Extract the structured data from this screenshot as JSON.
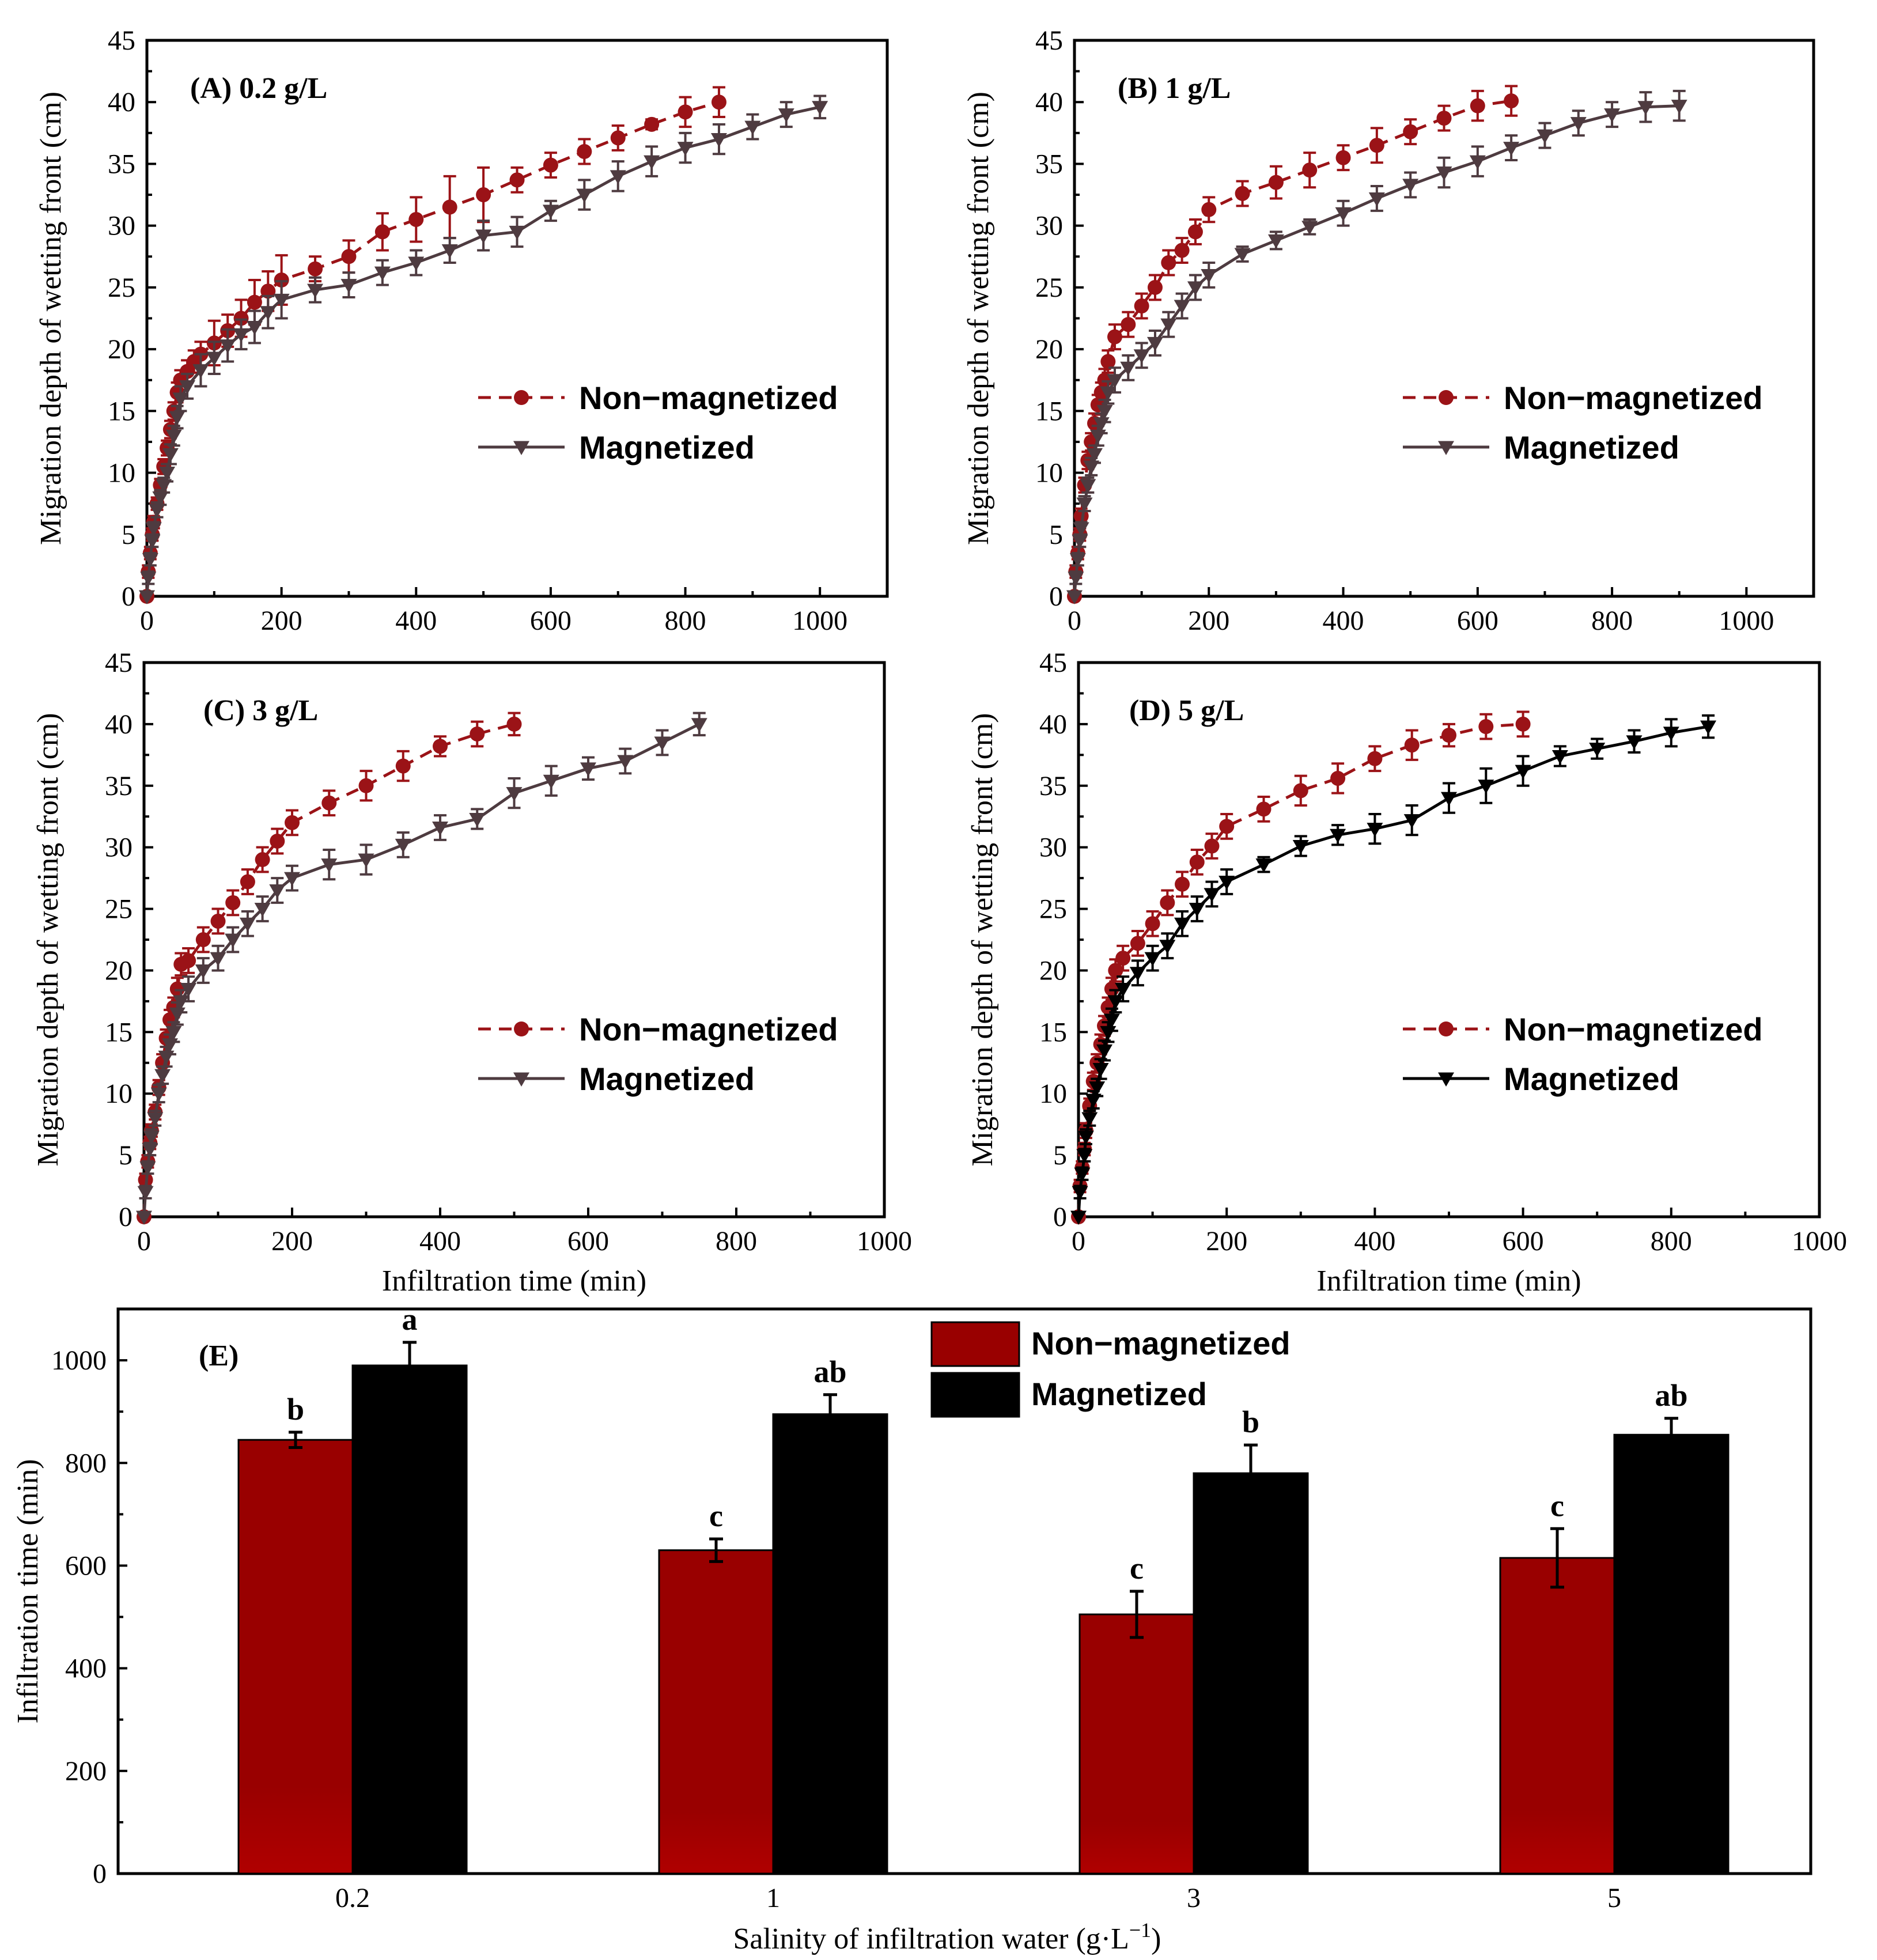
{
  "colors": {
    "non_magnetized": "#9b1317",
    "magnetized_line": "#4e3b40",
    "magnetized_dark": "#000000",
    "bar_non_magnetized": "#990000",
    "bar_magnetized": "#000000"
  },
  "chart_data": [
    {
      "type": "line",
      "panel": "(A) 0.2 g/L",
      "xlabel": "",
      "ylabel": "Migration depth of wetting front (cm)",
      "xlim": [
        0,
        1100
      ],
      "ylim": [
        0,
        45
      ],
      "xticks": [
        "0",
        "200",
        "400",
        "600",
        "800",
        "1000"
      ],
      "yticks": [
        "0",
        "5",
        "10",
        "15",
        "20",
        "25",
        "30",
        "35",
        "40",
        "45"
      ],
      "legend": [
        "Non−magnetized",
        "Magnetized"
      ],
      "series": [
        {
          "name": "Non−magnetized",
          "x": [
            0,
            2,
            5,
            8,
            10,
            15,
            20,
            25,
            30,
            35,
            40,
            45,
            50,
            60,
            70,
            80,
            100,
            120,
            140,
            160,
            180,
            200,
            250,
            300,
            350,
            400,
            450,
            500,
            550,
            600,
            650,
            700,
            750,
            800,
            850
          ],
          "y": [
            0,
            2,
            3.5,
            5,
            6,
            7.5,
            9,
            10.5,
            12,
            13.5,
            15,
            16.5,
            17.5,
            18.2,
            19,
            19.6,
            20.5,
            21.5,
            22.5,
            23.8,
            24.7,
            25.6,
            26.5,
            27.5,
            29.5,
            30.5,
            31.5,
            32.5,
            33.7,
            34.9,
            36,
            37.1,
            38.2,
            39.2,
            40
          ],
          "err": [
            0,
            0.5,
            0.5,
            0.5,
            0.5,
            0.5,
            0.5,
            0.6,
            0.6,
            0.7,
            0.7,
            0.8,
            0.8,
            0.9,
            0.9,
            1,
            1.8,
            1.3,
            1.5,
            1.8,
            1.6,
            2,
            1,
            1.3,
            1.5,
            1.8,
            2.5,
            2.2,
            1,
            1,
            1,
            1,
            0.4,
            1.2,
            1.2
          ]
        },
        {
          "name": "Magnetized",
          "x": [
            0,
            2,
            5,
            8,
            10,
            15,
            20,
            25,
            30,
            35,
            40,
            45,
            50,
            60,
            80,
            100,
            120,
            140,
            160,
            180,
            200,
            250,
            300,
            350,
            400,
            450,
            500,
            550,
            600,
            650,
            700,
            750,
            800,
            850,
            900,
            950,
            1000
          ],
          "y": [
            0,
            1.5,
            3,
            4.5,
            5.5,
            7,
            8,
            9,
            10,
            11.5,
            13,
            14.5,
            16,
            17,
            18.3,
            19.3,
            20.3,
            21.2,
            21.8,
            23,
            24,
            24.8,
            25.2,
            26.2,
            27,
            28,
            29.2,
            29.5,
            31.2,
            32.5,
            34,
            35.2,
            36.3,
            37,
            38,
            39,
            39.6
          ],
          "err": [
            0,
            0.5,
            0.5,
            0.5,
            0.5,
            0.6,
            0.6,
            0.6,
            0.7,
            0.8,
            0.8,
            0.9,
            1,
            1,
            1.3,
            1.3,
            1.3,
            1.2,
            1.3,
            1.3,
            1.5,
            1,
            1,
            1,
            1,
            1,
            1.2,
            1.2,
            0.8,
            1.2,
            1.2,
            1.2,
            1.2,
            1.2,
            1,
            1,
            0.9
          ]
        }
      ]
    },
    {
      "type": "line",
      "panel": "(B) 1 g/L",
      "xlabel": "",
      "ylabel": "Migration depth of wetting front (cm)",
      "xlim": [
        0,
        1100
      ],
      "ylim": [
        0,
        45
      ],
      "xticks": [
        "0",
        "200",
        "400",
        "600",
        "800",
        "1000"
      ],
      "yticks": [
        "0",
        "5",
        "10",
        "15",
        "20",
        "25",
        "30",
        "35",
        "40",
        "45"
      ],
      "legend": [
        "Non−magnetized",
        "Magnetized"
      ],
      "series": [
        {
          "name": "Non−magnetized",
          "x": [
            0,
            2,
            5,
            8,
            10,
            15,
            20,
            25,
            30,
            35,
            40,
            45,
            50,
            60,
            80,
            100,
            120,
            140,
            160,
            180,
            200,
            250,
            300,
            350,
            400,
            450,
            500,
            550,
            600,
            650
          ],
          "y": [
            0,
            2,
            3.5,
            5,
            6.5,
            9,
            11,
            12.5,
            14,
            15.5,
            16.5,
            17.5,
            19,
            21,
            22,
            23.5,
            25,
            27,
            28,
            29.5,
            31.3,
            32.6,
            33.5,
            34.5,
            35.5,
            36.5,
            37.6,
            38.7,
            39.7,
            40.1
          ],
          "err": [
            0,
            0.5,
            0.5,
            0.5,
            0.6,
            0.6,
            0.7,
            0.7,
            0.8,
            0.8,
            0.8,
            0.9,
            0.9,
            1,
            1,
            1,
            1,
            1,
            1,
            1,
            1,
            1,
            1.3,
            1.4,
            1,
            1.4,
            1,
            1,
            1.2,
            1.2
          ]
        },
        {
          "name": "Magnetized",
          "x": [
            0,
            2,
            5,
            8,
            10,
            15,
            20,
            25,
            30,
            35,
            40,
            45,
            50,
            60,
            80,
            100,
            120,
            140,
            160,
            180,
            200,
            250,
            300,
            350,
            400,
            450,
            500,
            550,
            600,
            650,
            700,
            750,
            800,
            850,
            900
          ],
          "y": [
            0,
            1.5,
            3,
            4.5,
            5.5,
            7.5,
            9,
            10.5,
            11.5,
            13,
            14,
            15,
            16.5,
            17.5,
            18.5,
            19.5,
            20.5,
            22,
            23.5,
            25,
            26,
            27.7,
            28.8,
            29.9,
            31,
            32.2,
            33.3,
            34.3,
            35.2,
            36.3,
            37.3,
            38.3,
            39,
            39.6,
            39.7
          ],
          "err": [
            0,
            0.5,
            0.5,
            0.5,
            0.5,
            0.6,
            0.6,
            0.7,
            0.7,
            0.8,
            0.8,
            0.9,
            0.9,
            1,
            1,
            1,
            1,
            1,
            1,
            1,
            1,
            0.6,
            0.7,
            0.6,
            1,
            1,
            1,
            1.2,
            1.2,
            1,
            1,
            1,
            1,
            1.2,
            1.2
          ]
        }
      ]
    },
    {
      "type": "line",
      "panel": "(C) 3 g/L",
      "xlabel": "Infiltration time (min)",
      "ylabel": "Migration depth of wetting front (cm)",
      "xlim": [
        0,
        1000
      ],
      "ylim": [
        0,
        45
      ],
      "xticks": [
        "0",
        "200",
        "400",
        "600",
        "800",
        "1000"
      ],
      "yticks": [
        "0",
        "5",
        "10",
        "15",
        "20",
        "25",
        "30",
        "35",
        "40",
        "45"
      ],
      "legend": [
        "Non−magnetized",
        "Magnetized"
      ],
      "series": [
        {
          "name": "Non−magnetized",
          "x": [
            0,
            2,
            5,
            8,
            10,
            15,
            20,
            25,
            30,
            35,
            40,
            45,
            50,
            60,
            80,
            100,
            120,
            140,
            160,
            180,
            200,
            250,
            300,
            350,
            400,
            450,
            500
          ],
          "y": [
            0,
            3,
            4.5,
            6,
            7,
            8.5,
            10.5,
            12.5,
            14.5,
            16,
            17,
            18.5,
            20.5,
            20.8,
            22.5,
            24,
            25.5,
            27.2,
            29,
            30.5,
            32,
            33.6,
            35,
            36.6,
            38.2,
            39.2,
            40
          ],
          "err": [
            0,
            0.5,
            0.5,
            0.5,
            0.5,
            0.6,
            0.6,
            0.7,
            0.7,
            0.8,
            0.8,
            0.9,
            0.9,
            1,
            1,
            1,
            1,
            1,
            1,
            1,
            1,
            1,
            1.2,
            1.2,
            0.8,
            1,
            0.9
          ]
        },
        {
          "name": "Magnetized",
          "x": [
            0,
            2,
            5,
            8,
            10,
            15,
            20,
            25,
            30,
            35,
            40,
            45,
            50,
            60,
            80,
            100,
            120,
            140,
            160,
            180,
            200,
            250,
            300,
            350,
            400,
            450,
            500,
            550,
            600,
            650,
            700,
            750
          ],
          "y": [
            0,
            2,
            4,
            5.5,
            6.5,
            8,
            10,
            11.5,
            13,
            14,
            15,
            16.5,
            17.5,
            18.5,
            20,
            21,
            22.5,
            23.8,
            25,
            26.5,
            27.5,
            28.6,
            29,
            30.2,
            31.6,
            32.3,
            34.4,
            35.4,
            36.4,
            37,
            38.5,
            40
          ],
          "err": [
            0,
            0.5,
            0.5,
            0.5,
            0.6,
            0.6,
            0.7,
            0.7,
            0.8,
            0.8,
            0.8,
            0.9,
            0.9,
            1,
            1,
            1,
            1,
            1,
            1,
            1,
            1,
            1.2,
            1.2,
            1,
            1,
            0.8,
            1.2,
            1.2,
            0.9,
            1,
            1,
            0.9
          ]
        }
      ]
    },
    {
      "type": "line",
      "panel": "(D) 5 g/L",
      "xlabel": "Infiltration time (min)",
      "ylabel": "Migration depth of wetting front (cm)",
      "xlim": [
        0,
        1000
      ],
      "ylim": [
        0,
        45
      ],
      "xticks": [
        "0",
        "200",
        "400",
        "600",
        "800",
        "1000"
      ],
      "yticks": [
        "0",
        "5",
        "10",
        "15",
        "20",
        "25",
        "30",
        "35",
        "40",
        "45"
      ],
      "legend": [
        "Non−magnetized",
        "Magnetized"
      ],
      "series": [
        {
          "name": "Non−magnetized",
          "x": [
            0,
            2,
            5,
            8,
            10,
            15,
            20,
            25,
            30,
            35,
            40,
            45,
            50,
            60,
            80,
            100,
            120,
            140,
            160,
            180,
            200,
            250,
            300,
            350,
            400,
            450,
            500,
            550,
            600
          ],
          "y": [
            0,
            2.5,
            4,
            5.5,
            7,
            9,
            11,
            12.5,
            14,
            15.5,
            17,
            18.5,
            20,
            21,
            22.2,
            23.8,
            25.5,
            27,
            28.8,
            30.1,
            31.7,
            33.1,
            34.6,
            35.6,
            37.2,
            38.3,
            39.1,
            39.8,
            40
          ],
          "err": [
            0,
            0.5,
            0.5,
            0.5,
            0.6,
            0.6,
            0.7,
            0.7,
            0.8,
            0.8,
            0.8,
            0.9,
            0.9,
            1,
            1,
            1,
            1,
            1,
            1,
            1,
            1,
            1,
            1.2,
            1.2,
            1,
            1.2,
            0.9,
            1,
            1
          ]
        },
        {
          "name": "Magnetized",
          "x": [
            0,
            2,
            5,
            8,
            10,
            15,
            20,
            25,
            30,
            35,
            40,
            45,
            50,
            60,
            80,
            100,
            120,
            140,
            160,
            180,
            200,
            250,
            300,
            350,
            400,
            450,
            500,
            550,
            600,
            650,
            700,
            750,
            800,
            850
          ],
          "y": [
            0,
            2,
            3.5,
            5,
            6.5,
            8,
            9.5,
            10.5,
            12,
            13.5,
            15,
            16,
            17.5,
            18.5,
            19.8,
            21,
            22,
            23.8,
            25,
            26.2,
            27.2,
            28.6,
            30.1,
            31,
            31.5,
            32.2,
            34,
            35,
            36.2,
            37.4,
            38,
            38.6,
            39.3,
            39.8
          ],
          "err": [
            0,
            0.5,
            0.5,
            0.5,
            0.6,
            0.6,
            0.7,
            0.7,
            0.8,
            0.8,
            0.8,
            0.9,
            0.9,
            1,
            1,
            1,
            1,
            1,
            1,
            1,
            1,
            0.6,
            0.8,
            0.8,
            1.2,
            1.2,
            1.2,
            1.4,
            1.2,
            0.8,
            0.8,
            0.9,
            1.1,
            0.9
          ]
        }
      ]
    },
    {
      "type": "bar",
      "panel": "(E)",
      "xlabel": "Salinity of infiltration water (g·L",
      "xlabel_sup": "−1",
      "xlabel_end": ")",
      "ylabel": "Infiltration time (min)",
      "ylim": [
        0,
        1100
      ],
      "yticks": [
        "0",
        "200",
        "400",
        "600",
        "800",
        "1000"
      ],
      "categories": [
        "0.2",
        "1",
        "3",
        "5"
      ],
      "legend": [
        "Non−magnetized",
        "Magnetized"
      ],
      "series": [
        {
          "name": "Non−magnetized",
          "values": [
            845,
            630,
            505,
            615
          ],
          "err": [
            15,
            22,
            45,
            57
          ],
          "letters": [
            "b",
            "c",
            "c",
            "c"
          ]
        },
        {
          "name": "Magnetized",
          "values": [
            990,
            895,
            780,
            855
          ],
          "err": [
            45,
            38,
            55,
            32
          ],
          "letters": [
            "a",
            "ab",
            "b",
            "ab"
          ]
        }
      ]
    }
  ]
}
